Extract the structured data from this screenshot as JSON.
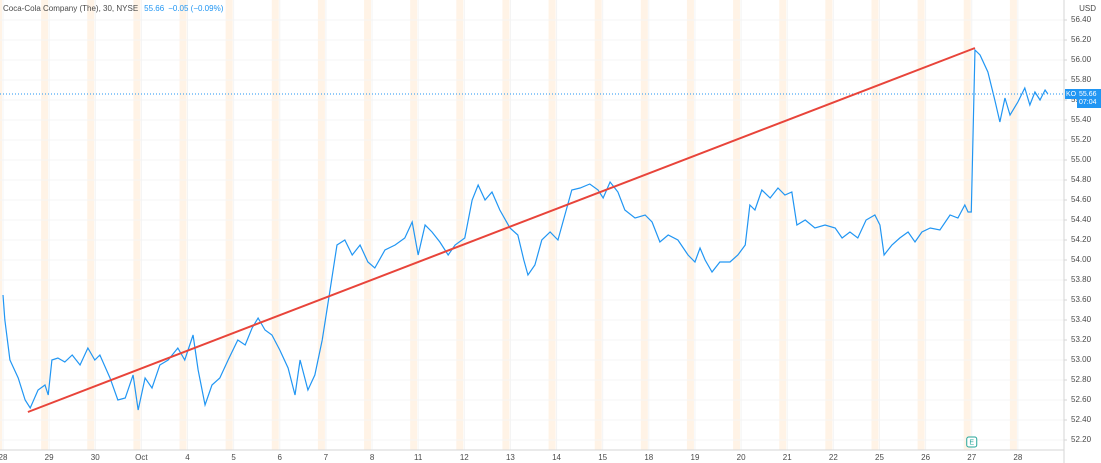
{
  "chart_data": {
    "type": "line",
    "title": "Coca-Cola Company (The), 30, NYSE",
    "last_price": 55.66,
    "last_price_label": "55.66",
    "change": "−0.05 (−0.09%)",
    "symbol": "KO",
    "countdown": "07:04",
    "currency": "USD",
    "grid": true,
    "xlim": [
      0,
      23
    ],
    "ylim": [
      52.1,
      56.6
    ],
    "xticks": [
      {
        "value": 0,
        "label": "28"
      },
      {
        "value": 1,
        "label": "29"
      },
      {
        "value": 2,
        "label": "30"
      },
      {
        "value": 3,
        "label": "Oct"
      },
      {
        "value": 4,
        "label": "4"
      },
      {
        "value": 5,
        "label": "5"
      },
      {
        "value": 6,
        "label": "6"
      },
      {
        "value": 7,
        "label": "7"
      },
      {
        "value": 8,
        "label": "8"
      },
      {
        "value": 9,
        "label": "11"
      },
      {
        "value": 10,
        "label": "12"
      },
      {
        "value": 11,
        "label": "13"
      },
      {
        "value": 12,
        "label": "14"
      },
      {
        "value": 13,
        "label": "15"
      },
      {
        "value": 14,
        "label": "18"
      },
      {
        "value": 15,
        "label": "19"
      },
      {
        "value": 16,
        "label": "20"
      },
      {
        "value": 17,
        "label": "21"
      },
      {
        "value": 18,
        "label": "22"
      },
      {
        "value": 19,
        "label": "25"
      },
      {
        "value": 20,
        "label": "26"
      },
      {
        "value": 21,
        "label": "27"
      },
      {
        "value": 22,
        "label": "28"
      }
    ],
    "yticks": [
      {
        "value": 52.2,
        "label": "52.20"
      },
      {
        "value": 52.4,
        "label": "52.40"
      },
      {
        "value": 52.6,
        "label": "52.60"
      },
      {
        "value": 52.8,
        "label": "52.80"
      },
      {
        "value": 53,
        "label": "53.00"
      },
      {
        "value": 53.2,
        "label": "53.20"
      },
      {
        "value": 53.4,
        "label": "53.40"
      },
      {
        "value": 53.6,
        "label": "53.60"
      },
      {
        "value": 53.8,
        "label": "53.80"
      },
      {
        "value": 54,
        "label": "54.00"
      },
      {
        "value": 54.2,
        "label": "54.20"
      },
      {
        "value": 54.4,
        "label": "54.40"
      },
      {
        "value": 54.6,
        "label": "54.60"
      },
      {
        "value": 54.8,
        "label": "54.80"
      },
      {
        "value": 55,
        "label": "55.00"
      },
      {
        "value": 55.2,
        "label": "55.20"
      },
      {
        "value": 55.4,
        "label": "55.40"
      },
      {
        "value": 55.6,
        "label": "55.60"
      },
      {
        "value": 55.8,
        "label": "55.80"
      },
      {
        "value": 56,
        "label": "56.00"
      },
      {
        "value": 56.2,
        "label": "56.20"
      },
      {
        "value": 56.4,
        "label": "56.40"
      }
    ],
    "x": [
      0,
      0.04,
      0.15,
      0.33,
      0.48,
      0.59,
      0.76,
      0.91,
      0.98,
      1.06,
      1.19,
      1.34,
      1.5,
      1.67,
      1.84,
      1.99,
      2.1,
      2.32,
      2.49,
      2.65,
      2.82,
      2.93,
      3.08,
      3.23,
      3.4,
      3.58,
      3.79,
      3.94,
      4.12,
      4.23,
      4.38,
      4.53,
      4.7,
      4.88,
      5.09,
      5.25,
      5.4,
      5.53,
      5.68,
      5.83,
      6,
      6.18,
      6.33,
      6.44,
      6.61,
      6.76,
      6.92,
      7.09,
      7.24,
      7.41,
      7.57,
      7.74,
      7.91,
      8.06,
      8.28,
      8.5,
      8.71,
      8.87,
      9,
      9.15,
      9.3,
      9.47,
      9.65,
      9.8,
      10.01,
      10.17,
      10.3,
      10.45,
      10.6,
      10.77,
      10.99,
      11.16,
      11.29,
      11.38,
      11.53,
      11.68,
      11.86,
      12.03,
      12.18,
      12.33,
      12.51,
      12.72,
      12.9,
      13.01,
      13.16,
      13.33,
      13.48,
      13.7,
      13.92,
      14.07,
      14.24,
      14.42,
      14.63,
      14.85,
      15,
      15.11,
      15.22,
      15.37,
      15.54,
      15.76,
      15.93,
      16.09,
      16.19,
      16.3,
      16.45,
      16.63,
      16.8,
      16.95,
      17.1,
      17.21,
      17.39,
      17.6,
      17.82,
      18.04,
      18.19,
      18.36,
      18.53,
      18.71,
      18.9,
      19.01,
      19.1,
      19.27,
      19.44,
      19.62,
      19.77,
      19.92,
      20.1,
      20.31,
      20.53,
      20.7,
      20.85,
      20.92,
      20.99,
      21.07,
      21.18,
      21.35,
      21.5,
      21.61,
      21.72,
      21.83,
      22,
      22.15,
      22.26,
      22.37,
      22.48,
      22.59,
      22.65
    ],
    "series": [
      {
        "name": "KO",
        "color": "#2196f3",
        "values": [
          53.65,
          53.4,
          53,
          52.82,
          52.6,
          52.52,
          52.7,
          52.75,
          52.65,
          53,
          53.02,
          52.98,
          53.05,
          52.95,
          53.12,
          53,
          53.05,
          52.82,
          52.6,
          52.62,
          52.85,
          52.5,
          52.82,
          52.72,
          52.95,
          53,
          53.12,
          53,
          53.25,
          52.9,
          52.55,
          52.75,
          52.82,
          53,
          53.2,
          53.15,
          53.32,
          53.42,
          53.3,
          53.25,
          53.1,
          52.92,
          52.65,
          53,
          52.7,
          52.85,
          53.2,
          53.7,
          54.15,
          54.2,
          54.05,
          54.15,
          53.98,
          53.92,
          54.1,
          54.15,
          54.22,
          54.38,
          54.05,
          54.35,
          54.28,
          54.18,
          54.05,
          54.15,
          54.22,
          54.6,
          54.75,
          54.6,
          54.68,
          54.5,
          54.32,
          54.25,
          54,
          53.85,
          53.95,
          54.2,
          54.28,
          54.2,
          54.45,
          54.7,
          54.72,
          54.76,
          54.7,
          54.62,
          54.78,
          54.68,
          54.5,
          54.42,
          54.45,
          54.38,
          54.18,
          54.25,
          54.2,
          54.05,
          53.98,
          54.12,
          54,
          53.88,
          53.98,
          53.98,
          54.05,
          54.15,
          54.55,
          54.5,
          54.7,
          54.62,
          54.72,
          54.65,
          54.68,
          54.35,
          54.4,
          54.32,
          54.35,
          54.32,
          54.22,
          54.28,
          54.22,
          54.4,
          54.45,
          54.35,
          54.05,
          54.15,
          54.22,
          54.28,
          54.18,
          54.28,
          54.32,
          54.3,
          54.45,
          54.42,
          54.55,
          54.48,
          54.48,
          56.1,
          56.05,
          55.88,
          55.6,
          55.38,
          55.62,
          55.45,
          55.58,
          55.72,
          55.55,
          55.68,
          55.6,
          55.7,
          55.66
        ]
      }
    ],
    "trendline": {
      "x": [
        0.54,
        21.07
      ],
      "values": [
        52.48,
        56.12
      ],
      "color": "#e8443a"
    },
    "earnings_marker": {
      "x": 21,
      "label": "E"
    }
  }
}
